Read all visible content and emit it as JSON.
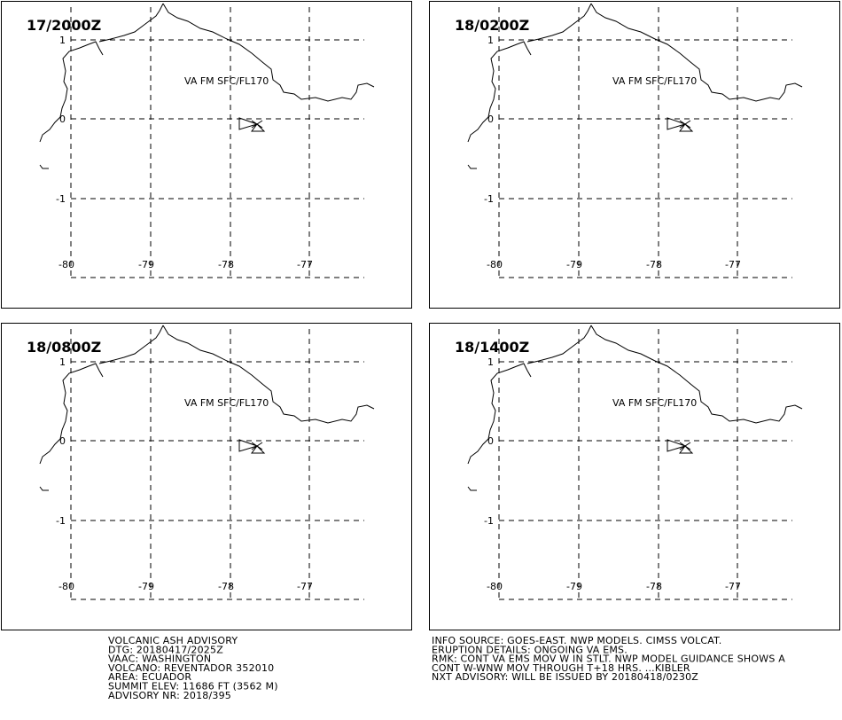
{
  "panels": [
    {
      "time": "17/2000Z",
      "annotation": "VA FM SFC/FL170",
      "lat_labels": [
        "1",
        "0",
        "-1"
      ],
      "lon_labels": [
        "-80",
        "-79",
        "-78",
        "-77"
      ]
    },
    {
      "time": "18/0200Z",
      "annotation": "VA FM SFC/FL170",
      "lat_labels": [
        "1",
        "0",
        "-1"
      ],
      "lon_labels": [
        "-80",
        "-79",
        "-78",
        "-77"
      ]
    },
    {
      "time": "18/0800Z",
      "annotation": "VA FM SFC/FL170",
      "lat_labels": [
        "1",
        "0",
        "-1"
      ],
      "lon_labels": [
        "-80",
        "-79",
        "-78",
        "-77"
      ]
    },
    {
      "time": "18/1400Z",
      "annotation": "VA FM SFC/FL170",
      "lat_labels": [
        "1",
        "0",
        "-1"
      ],
      "lon_labels": [
        "-80",
        "-79",
        "-78",
        "-77"
      ]
    }
  ],
  "footer_left": [
    "VOLCANIC ASH ADVISORY",
    "DTG: 20180417/2025Z",
    "VAAC: WASHINGTON",
    "VOLCANO: REVENTADOR 352010",
    "AREA: ECUADOR",
    "SUMMIT ELEV: 11686 FT (3562 M)",
    "ADVISORY NR: 2018/395"
  ],
  "footer_right": [
    "INFO SOURCE: GOES-EAST. NWP MODELS. CIMSS VOLCAT.",
    "ERUPTION DETAILS: ONGOING VA EMS.",
    "RMK: CONT VA EMS MOV W IN STLT. NWP MODEL GUIDANCE SHOWS A",
    "CONT W-WNW MOV THROUGH T+18 HRS. ...KIBLER",
    "NXT ADVISORY: WILL BE ISSUED BY 20180418/0230Z"
  ]
}
